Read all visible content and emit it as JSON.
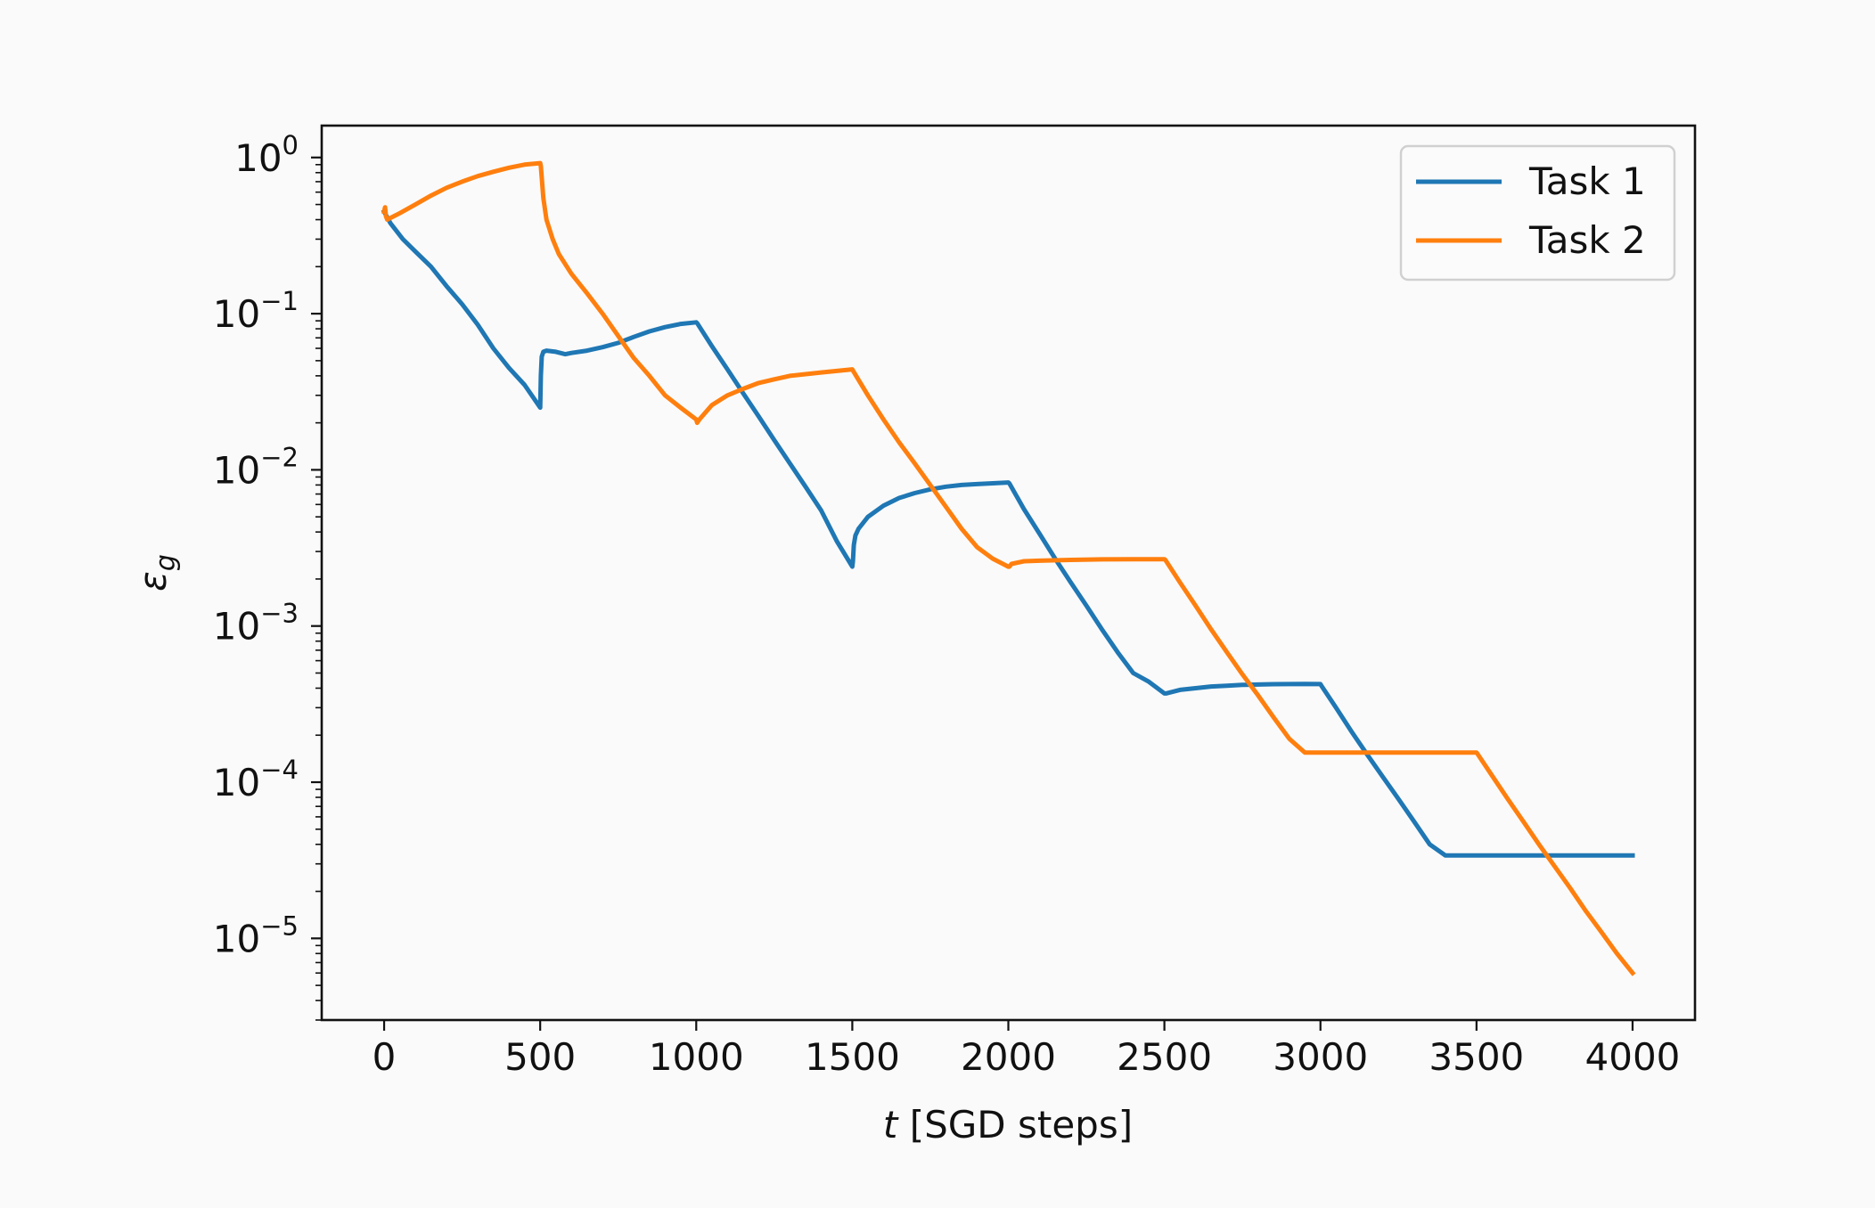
{
  "chart_data": {
    "type": "line",
    "xlabel_var": "t",
    "xlabel_rest": " [SGD steps]",
    "ylabel_main": "ε",
    "ylabel_sub": "g",
    "xlim": [
      -200,
      4200
    ],
    "ylim": [
      3e-06,
      1.6
    ],
    "yscale": "log",
    "x_ticks": [
      0,
      500,
      1000,
      1500,
      2000,
      2500,
      3000,
      3500,
      4000
    ],
    "x_tick_labels": [
      "0",
      "500",
      "1000",
      "1500",
      "2000",
      "2500",
      "3000",
      "3500",
      "4000"
    ],
    "y_ticks": [
      1,
      0.1,
      0.01,
      0.001,
      0.0001,
      1e-05
    ],
    "y_tick_base": "10",
    "y_tick_exponents": [
      "0",
      "−1",
      "−2",
      "−3",
      "−4",
      "−5"
    ],
    "grid": false,
    "legend_position": "upper right",
    "series": [
      {
        "name": "Task 1",
        "color": "#1f77b4",
        "x": [
          0,
          20,
          60,
          100,
          150,
          200,
          250,
          300,
          350,
          400,
          450,
          500,
          502,
          505,
          510,
          520,
          550,
          580,
          600,
          650,
          700,
          750,
          800,
          850,
          900,
          950,
          1000,
          1003,
          1050,
          1100,
          1150,
          1200,
          1250,
          1300,
          1350,
          1400,
          1450,
          1500,
          1502,
          1505,
          1510,
          1520,
          1550,
          1600,
          1650,
          1700,
          1750,
          1800,
          1850,
          1900,
          1950,
          2000,
          2003,
          2050,
          2100,
          2150,
          2200,
          2250,
          2300,
          2350,
          2400,
          2450,
          2500,
          2505,
          2550,
          2600,
          2650,
          2700,
          2750,
          2800,
          2850,
          2900,
          2950,
          3000,
          3003,
          3050,
          3100,
          3150,
          3200,
          3250,
          3300,
          3350,
          3400,
          3450,
          3500,
          3505,
          3550,
          3600,
          3700,
          3800,
          3900,
          4000
        ],
        "y": [
          0.45,
          0.38,
          0.3,
          0.25,
          0.2,
          0.15,
          0.115,
          0.085,
          0.06,
          0.045,
          0.035,
          0.025,
          0.04,
          0.053,
          0.057,
          0.058,
          0.057,
          0.055,
          0.056,
          0.058,
          0.061,
          0.065,
          0.071,
          0.077,
          0.082,
          0.086,
          0.088,
          0.087,
          0.062,
          0.044,
          0.031,
          0.022,
          0.0155,
          0.011,
          0.0078,
          0.0055,
          0.0035,
          0.0024,
          0.0026,
          0.0033,
          0.0038,
          0.0042,
          0.005,
          0.0059,
          0.0066,
          0.0071,
          0.0075,
          0.0078,
          0.008,
          0.0081,
          0.0082,
          0.0083,
          0.0082,
          0.0056,
          0.0039,
          0.0027,
          0.0019,
          0.00135,
          0.00095,
          0.00068,
          0.0005,
          0.00044,
          0.00037,
          0.00037,
          0.00039,
          0.0004,
          0.00041,
          0.000415,
          0.00042,
          0.000422,
          0.000424,
          0.000425,
          0.000426,
          0.000425,
          0.000415,
          0.0003,
          0.00021,
          0.00015,
          0.000108,
          7.8e-05,
          5.6e-05,
          4e-05,
          3.4e-05,
          3.4e-05,
          3.4e-05,
          3.4e-05,
          3.4e-05,
          3.4e-05,
          3.4e-05,
          3.4e-05,
          3.4e-05,
          3.4e-05
        ]
      },
      {
        "name": "Task 2",
        "color": "#ff7f0e",
        "x": [
          0,
          3,
          6,
          10,
          50,
          100,
          150,
          200,
          250,
          300,
          350,
          400,
          450,
          500,
          502,
          510,
          520,
          540,
          560,
          600,
          650,
          700,
          750,
          800,
          850,
          900,
          950,
          1000,
          1003,
          1010,
          1050,
          1100,
          1150,
          1200,
          1250,
          1300,
          1350,
          1400,
          1450,
          1500,
          1503,
          1550,
          1600,
          1650,
          1700,
          1750,
          1800,
          1850,
          1900,
          1950,
          2000,
          2003,
          2010,
          2050,
          2100,
          2200,
          2300,
          2400,
          2500,
          2503,
          2550,
          2600,
          2650,
          2700,
          2750,
          2800,
          2850,
          2900,
          2950,
          3000,
          3003,
          3100,
          3200,
          3300,
          3400,
          3500,
          3503,
          3550,
          3600,
          3650,
          3700,
          3750,
          3800,
          3850,
          3900,
          3950,
          4000
        ],
        "y": [
          0.45,
          0.48,
          0.42,
          0.4,
          0.44,
          0.5,
          0.57,
          0.64,
          0.7,
          0.76,
          0.81,
          0.86,
          0.9,
          0.92,
          0.88,
          0.55,
          0.4,
          0.3,
          0.24,
          0.18,
          0.135,
          0.1,
          0.072,
          0.052,
          0.04,
          0.03,
          0.025,
          0.021,
          0.02,
          0.021,
          0.026,
          0.03,
          0.033,
          0.036,
          0.038,
          0.04,
          0.041,
          0.042,
          0.043,
          0.044,
          0.043,
          0.03,
          0.021,
          0.015,
          0.011,
          0.008,
          0.0058,
          0.0042,
          0.0032,
          0.0027,
          0.0024,
          0.0024,
          0.0025,
          0.0026,
          0.00262,
          0.00265,
          0.00267,
          0.00268,
          0.00268,
          0.00265,
          0.0019,
          0.00135,
          0.00095,
          0.00068,
          0.00049,
          0.00036,
          0.00026,
          0.00019,
          0.000155,
          0.000155,
          0.000155,
          0.000155,
          0.000155,
          0.000155,
          0.000155,
          0.000155,
          0.000152,
          0.00011,
          7.8e-05,
          5.6e-05,
          4e-05,
          2.9e-05,
          2.1e-05,
          1.5e-05,
          1.1e-05,
          8e-06,
          6e-06
        ]
      }
    ]
  }
}
